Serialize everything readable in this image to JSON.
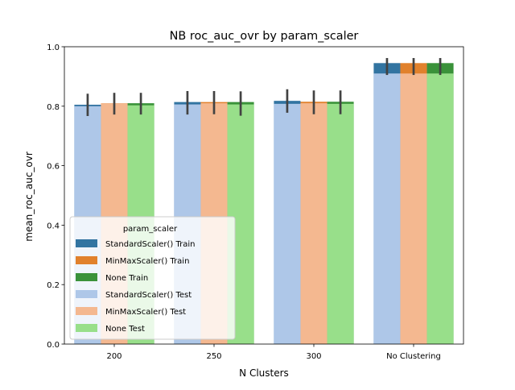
{
  "chart_data": {
    "type": "bar",
    "title": "NB roc_auc_ovr by param_scaler",
    "xlabel": "N Clusters",
    "ylabel": "mean_roc_auc_ovr",
    "categories": [
      "200",
      "250",
      "300",
      "No Clustering"
    ],
    "ylim": [
      0,
      1.0
    ],
    "yticks": [
      0.0,
      0.2,
      0.4,
      0.6,
      0.8,
      1.0
    ],
    "ytick_labels": [
      "0.0",
      "0.2",
      "0.4",
      "0.6",
      "0.8",
      "1.0"
    ],
    "grid": false,
    "legend": {
      "title": "param_scaler",
      "placement": "lower-left"
    },
    "series": [
      {
        "name": "StandardScaler() Train",
        "color": "#3274a1",
        "values": [
          0.805,
          0.814,
          0.818,
          0.945
        ],
        "err_low": [
          0.767,
          0.772,
          0.778,
          0.905
        ],
        "err_high": [
          0.842,
          0.851,
          0.857,
          0.962
        ]
      },
      {
        "name": "MinMaxScaler() Train",
        "color": "#e1812c",
        "values": [
          0.81,
          0.814,
          0.815,
          0.945
        ],
        "err_low": [
          0.772,
          0.773,
          0.773,
          0.905
        ],
        "err_high": [
          0.845,
          0.851,
          0.853,
          0.962
        ]
      },
      {
        "name": "None Train",
        "color": "#3a923a",
        "values": [
          0.81,
          0.814,
          0.815,
          0.945
        ],
        "err_low": [
          0.772,
          0.768,
          0.773,
          0.905
        ],
        "err_high": [
          0.845,
          0.85,
          0.853,
          0.962
        ]
      },
      {
        "name": "StandardScaler() Test",
        "color": "#aec7e8",
        "values": [
          0.8,
          0.806,
          0.808,
          0.91
        ],
        "err_low": null,
        "err_high": null
      },
      {
        "name": "MinMaxScaler() Test",
        "color": "#f4b890",
        "values": [
          0.81,
          0.81,
          0.81,
          0.91
        ],
        "err_low": null,
        "err_high": null
      },
      {
        "name": "None Test",
        "color": "#98df8a",
        "values": [
          0.803,
          0.806,
          0.808,
          0.91
        ],
        "err_low": null,
        "err_high": null
      }
    ]
  }
}
